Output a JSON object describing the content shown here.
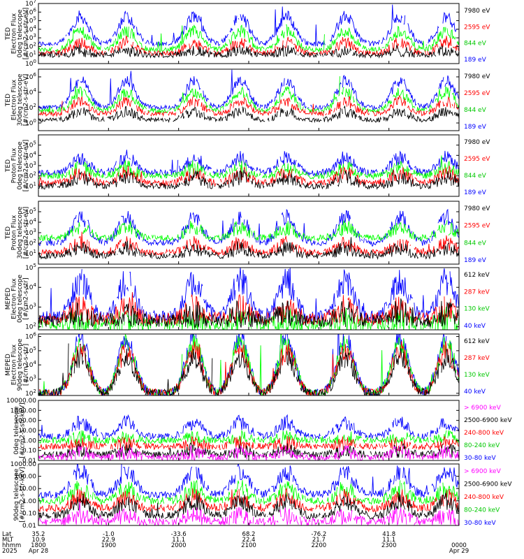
{
  "colors": {
    "blue": "#0000ff",
    "red": "#ff0000",
    "green": "#00ff00",
    "black": "#000000",
    "magenta": "#ff00ff"
  },
  "chart_data": [
    {
      "type": "line",
      "instrument": "TED",
      "ylabel": [
        "TED",
        "Electron Flux",
        "0deg telescope",
        "[#/cm2-s-str-eV]"
      ],
      "yscale": "log",
      "ylim": [
        1,
        10000000
      ],
      "yticks": [
        {
          "base": "10",
          "exp": "0"
        },
        {
          "base": "10",
          "exp": "1"
        },
        {
          "base": "10",
          "exp": "2"
        },
        {
          "base": "10",
          "exp": "3"
        },
        {
          "base": "10",
          "exp": "4"
        },
        {
          "base": "10",
          "exp": "5"
        },
        {
          "base": "10",
          "exp": "6"
        },
        {
          "base": "10",
          "exp": "7"
        }
      ],
      "series": [
        {
          "name": "7980 eV",
          "color": "#000000",
          "level": 1.0,
          "peak": 1.5
        },
        {
          "name": "2595 eV",
          "color": "#ff0000",
          "level": 1.2,
          "peak": 2.5
        },
        {
          "name": "844 eV",
          "color": "#00ff00",
          "level": 1.6,
          "peak": 3.8
        },
        {
          "name": "189 eV",
          "color": "#0000ff",
          "level": 2.3,
          "peak": 5.5
        }
      ]
    },
    {
      "type": "line",
      "instrument": "TED",
      "ylabel": [
        "TED",
        "Electron Flux",
        "30deg telescope",
        "[#/cm2-s-str-eV]"
      ],
      "yscale": "log",
      "ylim": [
        0.1,
        10000000
      ],
      "yticks": [
        {
          "base": "10",
          "exp": "0"
        },
        {
          "base": "10",
          "exp": "2"
        },
        {
          "base": "10",
          "exp": "4"
        },
        {
          "base": "10",
          "exp": "6"
        }
      ],
      "series": [
        {
          "name": "7980 eV",
          "color": "#000000",
          "level": 0.4,
          "peak": 1.5
        },
        {
          "name": "2595 eV",
          "color": "#ff0000",
          "level": 1.2,
          "peak": 2.8
        },
        {
          "name": "844 eV",
          "color": "#00ff00",
          "level": 1.6,
          "peak": 4.0
        },
        {
          "name": "189 eV",
          "color": "#0000ff",
          "level": 2.0,
          "peak": 5.5
        }
      ]
    },
    {
      "type": "line",
      "instrument": "TED",
      "ylabel": [
        "TED",
        "Proton Flux",
        "0deg telescope",
        "[#/cm2-s-str-eV]"
      ],
      "yscale": "log",
      "ylim": [
        1,
        1000000
      ],
      "yticks": [
        {
          "base": "10",
          "exp": "1"
        },
        {
          "base": "10",
          "exp": "2"
        },
        {
          "base": "10",
          "exp": "3"
        },
        {
          "base": "10",
          "exp": "4"
        },
        {
          "base": "10",
          "exp": "5"
        }
      ],
      "series": [
        {
          "name": "7980 eV",
          "color": "#000000",
          "level": 1.0,
          "peak": 1.8
        },
        {
          "name": "2595 eV",
          "color": "#ff0000",
          "level": 1.3,
          "peak": 2.3
        },
        {
          "name": "844 eV",
          "color": "#00ff00",
          "level": 2.0,
          "peak": 2.8
        },
        {
          "name": "189 eV",
          "color": "#0000ff",
          "level": 2.3,
          "peak": 3.8
        }
      ]
    },
    {
      "type": "line",
      "instrument": "TED",
      "ylabel": [
        "TED",
        "Proton Flux",
        "30deg telescope",
        "[#/cm2-s-str-eV]"
      ],
      "yscale": "log",
      "ylim": [
        1,
        1000000
      ],
      "yticks": [
        {
          "base": "10",
          "exp": "1"
        },
        {
          "base": "10",
          "exp": "2"
        },
        {
          "base": "10",
          "exp": "3"
        },
        {
          "base": "10",
          "exp": "4"
        },
        {
          "base": "10",
          "exp": "5"
        }
      ],
      "series": [
        {
          "name": "7980 eV",
          "color": "#000000",
          "level": 0.8,
          "peak": 1.5
        },
        {
          "name": "2595 eV",
          "color": "#ff0000",
          "level": 1.1,
          "peak": 2.0
        },
        {
          "name": "844 eV",
          "color": "#00ff00",
          "level": 2.5,
          "peak": 3.5
        },
        {
          "name": "189 eV",
          "color": "#0000ff",
          "level": 2.0,
          "peak": 4.5
        }
      ]
    },
    {
      "type": "line",
      "instrument": "MEPED",
      "ylabel": [
        "MEPED",
        "Electron Flux",
        "0deg telescope",
        "[#/cm2-s-str]"
      ],
      "yscale": "log",
      "ylim": [
        70,
        100000
      ],
      "yticks": [
        {
          "base": "10",
          "exp": "2"
        },
        {
          "base": "10",
          "exp": "3"
        },
        {
          "base": "10",
          "exp": "4"
        },
        {
          "base": "10",
          "exp": "5"
        }
      ],
      "series": [
        {
          "name": "612 keV",
          "color": "#000000",
          "level": 2.3,
          "peak": 2.7
        },
        {
          "name": "287 keV",
          "color": "#ff0000",
          "level": 2.4,
          "peak": 2.9
        },
        {
          "name": "130 keV",
          "color": "#00ff00",
          "level": 2.1,
          "peak": 2.3
        },
        {
          "name": "40 keV",
          "color": "#0000ff",
          "level": 2.5,
          "peak": 4.3
        }
      ]
    },
    {
      "type": "line",
      "instrument": "MEPED",
      "ylabel": [
        "MEPED",
        "Electron Flux",
        "90deg telescope",
        "[#/cm2-s-str]"
      ],
      "yscale": "log",
      "ylim": [
        70,
        1500000
      ],
      "yticks": [
        {
          "base": "10",
          "exp": "2"
        },
        {
          "base": "10",
          "exp": "3"
        },
        {
          "base": "10",
          "exp": "4"
        },
        {
          "base": "10",
          "exp": "5"
        },
        {
          "base": "10",
          "exp": "6"
        }
      ],
      "series": [
        {
          "name": "612 keV",
          "color": "#000000",
          "level": 2.0,
          "peak": 4.5
        },
        {
          "name": "287 keV",
          "color": "#ff0000",
          "level": 2.0,
          "peak": 5.0
        },
        {
          "name": "130 keV",
          "color": "#00ff00",
          "level": 2.0,
          "peak": 5.5
        },
        {
          "name": "40 keV",
          "color": "#0000ff",
          "level": 2.0,
          "peak": 5.8
        }
      ]
    },
    {
      "type": "line",
      "instrument": "MEPED",
      "ylabel": [
        "0deg telescope",
        "[#/cm2-s-str-keV]"
      ],
      "yscale": "log",
      "ylim": [
        0.01,
        10000
      ],
      "yticks": [
        "10000.00",
        "1000.00",
        "100.00",
        "10.00",
        "1.00",
        "0.10",
        "0.01"
      ],
      "series": [
        {
          "name": "> 6900 keV",
          "color": "#ff00ff",
          "level": -1.7,
          "peak": -1.2
        },
        {
          "name": "2500-6900 keV",
          "color": "#000000",
          "level": -1.4,
          "peak": -1.0
        },
        {
          "name": "240-800 keV",
          "color": "#ff0000",
          "level": -0.6,
          "peak": -0.3
        },
        {
          "name": "80-240 keV",
          "color": "#00ff00",
          "level": 0.0,
          "peak": 0.3
        },
        {
          "name": "30-80 keV",
          "color": "#0000ff",
          "level": 0.4,
          "peak": 1.8
        }
      ]
    },
    {
      "type": "line",
      "instrument": "MEPED",
      "ylabel": [
        "90deg telescope",
        "[#/cm2-s-str-keV]"
      ],
      "yscale": "log",
      "ylim": [
        0.01,
        1000
      ],
      "yticks": [
        "1000.00",
        "100.00",
        "10.00",
        "1.00",
        "0.10",
        "0.01"
      ],
      "series": [
        {
          "name": "> 6900 keV",
          "color": "#ff00ff",
          "level": -1.7,
          "peak": -1.2
        },
        {
          "name": "2500-6900 keV",
          "color": "#000000",
          "level": -1.2,
          "peak": 0.0
        },
        {
          "name": "240-800 keV",
          "color": "#ff0000",
          "level": -0.6,
          "peak": 0.3
        },
        {
          "name": "80-240 keV",
          "color": "#00ff00",
          "level": 0.0,
          "peak": 1.0
        },
        {
          "name": "30-80 keV",
          "color": "#0000ff",
          "level": 0.5,
          "peak": 2.4
        }
      ]
    }
  ],
  "xaxis": {
    "row_labels": [
      "Lat",
      "MLT",
      "hhmm",
      "2025"
    ],
    "ticks": [
      {
        "lat": "35.2",
        "mlt": "10.9",
        "hhmm": "1800",
        "date": "Apr 28"
      },
      {
        "lat": "-1.0",
        "mlt": "22.9",
        "hhmm": "1900",
        "date": ""
      },
      {
        "lat": "-33.6",
        "mlt": "11.1",
        "hhmm": "2000",
        "date": ""
      },
      {
        "lat": "68.2",
        "mlt": "22.4",
        "hhmm": "2100",
        "date": ""
      },
      {
        "lat": "-76.2",
        "mlt": "21.7",
        "hhmm": "2200",
        "date": ""
      },
      {
        "lat": "41.8",
        "mlt": "11.1",
        "hhmm": "2300",
        "date": ""
      },
      {
        "lat": "",
        "mlt": "",
        "hhmm": "0000",
        "date": "Apr 29"
      }
    ],
    "xlim": [
      "1800",
      "0000"
    ]
  }
}
